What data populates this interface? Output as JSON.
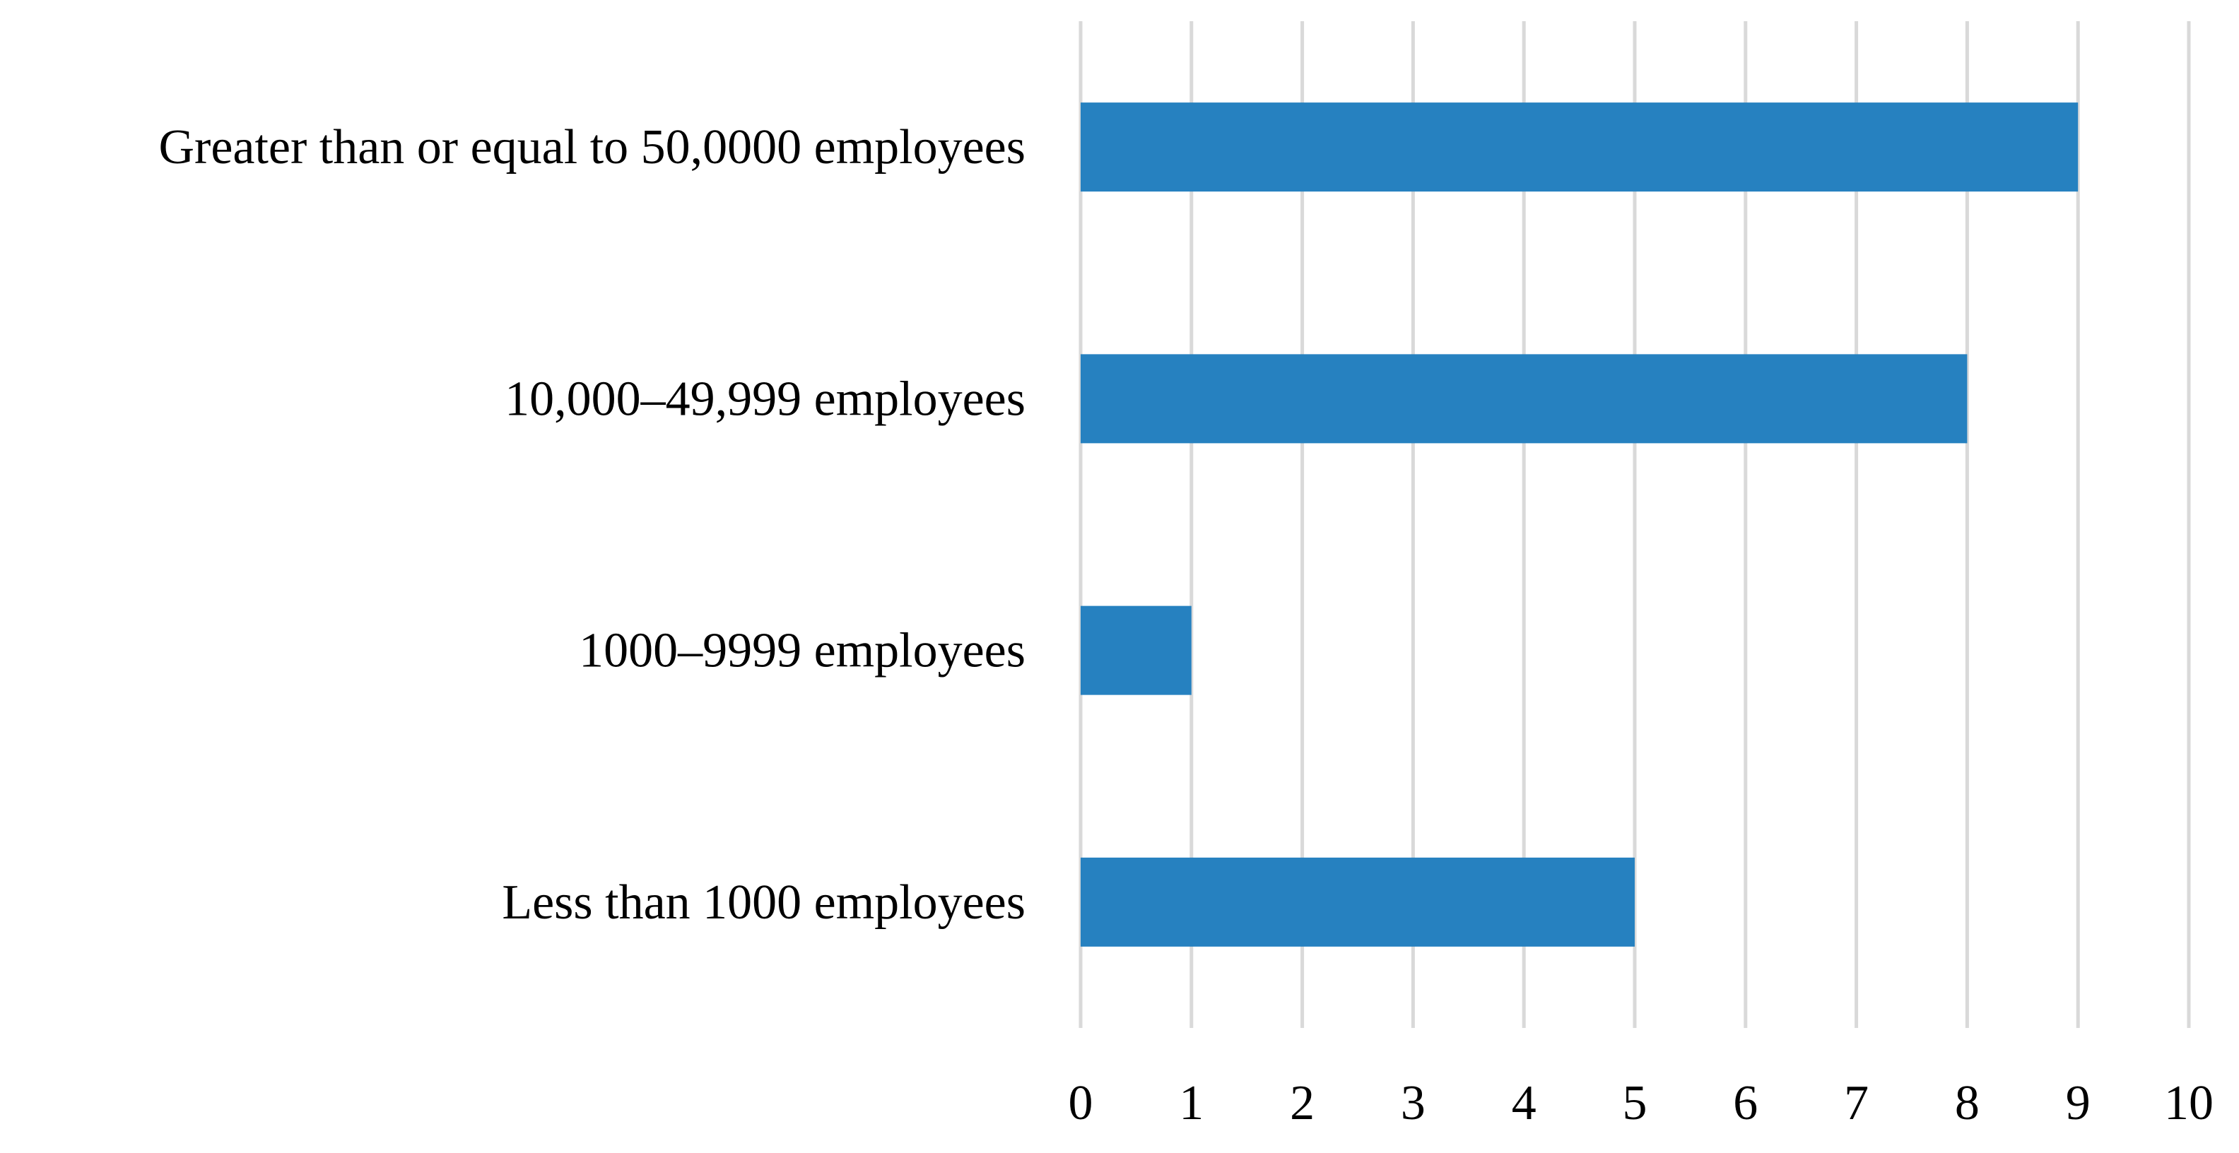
{
  "chart_data": {
    "type": "bar",
    "orientation": "horizontal",
    "categories": [
      "Greater than or equal to 50,0000 employees",
      "10,000–49,999 employees",
      "1000–9999 employees",
      "Less than 1000 employees"
    ],
    "values": [
      9,
      8,
      1,
      5
    ],
    "xlim": [
      0,
      10
    ],
    "xticks": [
      0,
      1,
      2,
      3,
      4,
      5,
      6,
      7,
      8,
      9,
      10
    ],
    "xtick_labels": [
      "0",
      "1",
      "2",
      "3",
      "4",
      "5",
      "6",
      "7",
      "8",
      "9",
      "10"
    ],
    "title": "",
    "xlabel": "",
    "ylabel": "",
    "grid": "vertical",
    "legend": "none",
    "colors": {
      "bar": "#2681c0",
      "grid": "#d9d9d9"
    }
  }
}
